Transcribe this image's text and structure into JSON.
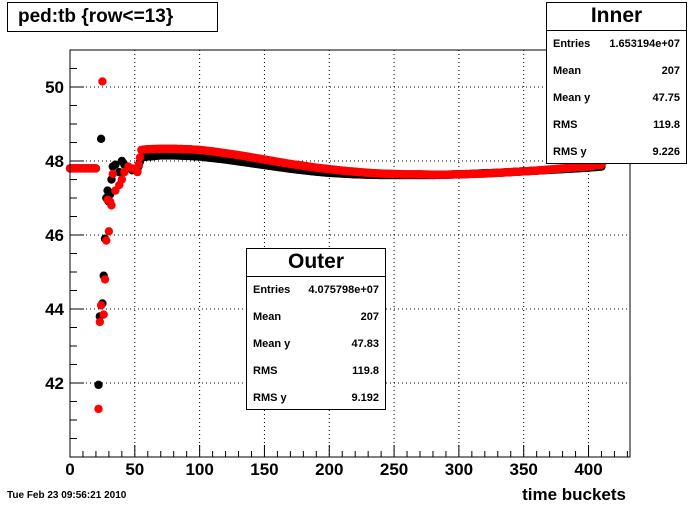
{
  "title": "ped:tb {row<=13}",
  "timestamp": "Tue Feb 23 09:56:21 2010",
  "stats_inner": {
    "name": "Inner",
    "rows": [
      {
        "label": "Entries",
        "value": "1.653194e+07"
      },
      {
        "label": "Mean",
        "value": "207"
      },
      {
        "label": "Mean y",
        "value": "47.75"
      },
      {
        "label": "RMS",
        "value": "119.8"
      },
      {
        "label": "RMS y",
        "value": "9.226"
      }
    ]
  },
  "stats_outer": {
    "name": "Outer",
    "rows": [
      {
        "label": "Entries",
        "value": "4.075798e+07"
      },
      {
        "label": "Mean",
        "value": "207"
      },
      {
        "label": "Mean y",
        "value": "47.83"
      },
      {
        "label": "RMS",
        "value": "119.8"
      },
      {
        "label": "RMS y",
        "value": "9.192"
      }
    ]
  },
  "chart_data": {
    "type": "scatter",
    "title": "ped:tb {row<=13}",
    "xlabel": "time buckets",
    "ylabel": "",
    "xlim": [
      0,
      432
    ],
    "ylim": [
      40,
      51
    ],
    "xticks": [
      0,
      50,
      100,
      150,
      200,
      250,
      300,
      350,
      400
    ],
    "yticks": [
      42,
      44,
      46,
      48,
      50
    ],
    "grid": true,
    "colors": {
      "inner": "#000000",
      "outer": "#ff0000"
    },
    "series": [
      {
        "name": "Inner",
        "color": "#000000",
        "points": [
          [
            0,
            47.8
          ],
          [
            5,
            47.8
          ],
          [
            10,
            47.8
          ],
          [
            15,
            47.8
          ],
          [
            20,
            47.8
          ],
          [
            22,
            41.95
          ],
          [
            23,
            43.8
          ],
          [
            24,
            48.6
          ],
          [
            25,
            44.15
          ],
          [
            26,
            44.9
          ],
          [
            27,
            45.9
          ],
          [
            28,
            47.0
          ],
          [
            29,
            47.2
          ],
          [
            30,
            46.9
          ],
          [
            31,
            47.1
          ],
          [
            32,
            47.5
          ],
          [
            33,
            47.85
          ],
          [
            35,
            47.9
          ],
          [
            38,
            47.7
          ],
          [
            40,
            48.0
          ],
          [
            42,
            47.9
          ],
          [
            45,
            47.8
          ],
          [
            48,
            47.75
          ],
          [
            52,
            47.75
          ],
          [
            55,
            48.1
          ],
          [
            60,
            48.12
          ],
          [
            70,
            48.15
          ],
          [
            80,
            48.15
          ],
          [
            90,
            48.14
          ],
          [
            100,
            48.12
          ],
          [
            110,
            48.08
          ],
          [
            120,
            48.04
          ],
          [
            130,
            47.99
          ],
          [
            140,
            47.94
          ],
          [
            150,
            47.89
          ],
          [
            160,
            47.84
          ],
          [
            170,
            47.79
          ],
          [
            180,
            47.75
          ],
          [
            190,
            47.71
          ],
          [
            200,
            47.68
          ],
          [
            210,
            47.66
          ],
          [
            220,
            47.64
          ],
          [
            230,
            47.63
          ],
          [
            240,
            47.62
          ],
          [
            250,
            47.62
          ],
          [
            260,
            47.62
          ],
          [
            270,
            47.62
          ],
          [
            280,
            47.62
          ],
          [
            290,
            47.63
          ],
          [
            300,
            47.64
          ],
          [
            310,
            47.65
          ],
          [
            320,
            47.67
          ],
          [
            330,
            47.68
          ],
          [
            340,
            47.7
          ],
          [
            350,
            47.72
          ],
          [
            360,
            47.74
          ],
          [
            370,
            47.76
          ],
          [
            380,
            47.78
          ],
          [
            390,
            47.8
          ],
          [
            400,
            47.82
          ],
          [
            410,
            47.85
          ]
        ]
      },
      {
        "name": "Outer",
        "color": "#ff0000",
        "points": [
          [
            0,
            47.8
          ],
          [
            5,
            47.8
          ],
          [
            10,
            47.8
          ],
          [
            15,
            47.8
          ],
          [
            20,
            47.8
          ],
          [
            22,
            41.3
          ],
          [
            23,
            43.65
          ],
          [
            24,
            44.1
          ],
          [
            25,
            50.15
          ],
          [
            26,
            43.85
          ],
          [
            27,
            44.8
          ],
          [
            28,
            45.85
          ],
          [
            29,
            46.95
          ],
          [
            30,
            46.1
          ],
          [
            31,
            46.9
          ],
          [
            32,
            46.8
          ],
          [
            33,
            47.65
          ],
          [
            35,
            47.2
          ],
          [
            38,
            47.35
          ],
          [
            40,
            47.5
          ],
          [
            42,
            47.7
          ],
          [
            45,
            47.85
          ],
          [
            48,
            47.8
          ],
          [
            52,
            47.7
          ],
          [
            55,
            48.3
          ],
          [
            60,
            48.32
          ],
          [
            70,
            48.33
          ],
          [
            80,
            48.33
          ],
          [
            90,
            48.32
          ],
          [
            100,
            48.3
          ],
          [
            110,
            48.26
          ],
          [
            120,
            48.21
          ],
          [
            130,
            48.16
          ],
          [
            140,
            48.1
          ],
          [
            150,
            48.04
          ],
          [
            160,
            47.98
          ],
          [
            170,
            47.92
          ],
          [
            180,
            47.87
          ],
          [
            190,
            47.82
          ],
          [
            200,
            47.78
          ],
          [
            210,
            47.74
          ],
          [
            220,
            47.71
          ],
          [
            230,
            47.68
          ],
          [
            240,
            47.66
          ],
          [
            250,
            47.65
          ],
          [
            260,
            47.64
          ],
          [
            270,
            47.64
          ],
          [
            280,
            47.63
          ],
          [
            290,
            47.63
          ],
          [
            300,
            47.64
          ],
          [
            310,
            47.65
          ],
          [
            320,
            47.66
          ],
          [
            330,
            47.68
          ],
          [
            340,
            47.7
          ],
          [
            350,
            47.72
          ],
          [
            360,
            47.74
          ],
          [
            370,
            47.77
          ],
          [
            380,
            47.8
          ],
          [
            390,
            47.83
          ],
          [
            400,
            47.85
          ],
          [
            410,
            47.9
          ],
          [
            413,
            48.1
          ]
        ]
      }
    ]
  }
}
